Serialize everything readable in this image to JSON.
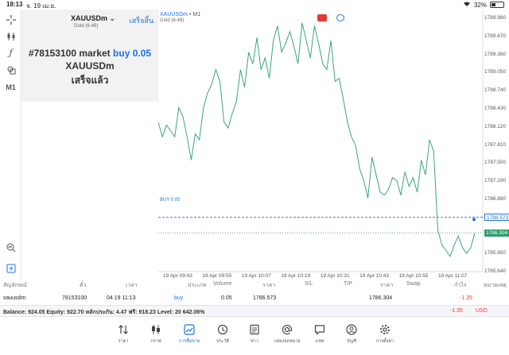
{
  "status": {
    "time": "18:13",
    "date": "จ. 19 เม.ย.",
    "battery": "32%"
  },
  "toolbar": {
    "timeframe": "M1"
  },
  "order_panel": {
    "symbol": "XAUUSDm",
    "symbol_sub": "Gold (6-49)",
    "done_label": "เสร็จสิ้น",
    "result_prefix": "#78153100 market",
    "result_side": "buy 0.05",
    "result_symbol": "XAUUSDm",
    "result_status": "เสร็จแล้ว"
  },
  "chart": {
    "symbol": "XAUUSDm",
    "timeframe": "• M1",
    "sub": "Gold (6-49)",
    "buy_line_label": "BUY 0.05",
    "buy_price_label": "1786.573",
    "current_price_label": "1786.304",
    "colors": {
      "line": "#3aa57a",
      "buy": "#1a73e8",
      "current": "#2e9e6e"
    }
  },
  "chart_data": {
    "type": "line",
    "ylim": [
      1785.64,
      1790.13
    ],
    "y_ticks": [
      "1789.980",
      "1789.670",
      "1789.360",
      "1789.050",
      "1788.740",
      "1788.430",
      "1788.120",
      "1787.810",
      "1787.500",
      "1787.190",
      "1786.880",
      "1786.573",
      "1786.304",
      "1785.950",
      "1785.640"
    ],
    "x_ticks": [
      "19 Apr 09:43",
      "19 Apr 09:55",
      "19 Apr 10:07",
      "19 Apr 10:19",
      "19 Apr 10:31",
      "19 Apr 10:43",
      "19 Apr 10:55",
      "19 Apr 11:07"
    ],
    "series": [
      {
        "values": [
          1788.2,
          1787.95,
          1788.15,
          1788.05,
          1787.95,
          1788.45,
          1788.3,
          1787.95,
          1787.55,
          1788.0,
          1787.9,
          1788.45,
          1788.7,
          1788.85,
          1789.1,
          1788.9,
          1788.2,
          1788.1,
          1788.35,
          1788.55,
          1789.1,
          1788.8,
          1789.4,
          1789.2,
          1789.65,
          1789.1,
          1789.3,
          1788.95,
          1789.6,
          1789.85,
          1789.4,
          1789.55,
          1789.75,
          1789.5,
          1789.2,
          1789.9,
          1789.6,
          1789.3,
          1789.85,
          1789.55,
          1789.2,
          1789.1,
          1789.6,
          1788.9,
          1788.95,
          1788.6,
          1788.2,
          1787.95,
          1787.8,
          1787.4,
          1787.2,
          1786.9,
          1787.6,
          1787.3,
          1787.0,
          1786.95,
          1787.05,
          1787.25,
          1787.2,
          1786.95,
          1787.35,
          1787.1,
          1787.25,
          1787.0,
          1787.55,
          1787.3,
          1787.9,
          1787.7,
          1786.35,
          1786.1,
          1786.0,
          1785.9,
          1786.1,
          1786.25,
          1786.05,
          1785.95,
          1786.05,
          1786.3
        ]
      }
    ]
  },
  "table": {
    "headers": [
      "สัญลักษณ์",
      "ตั๋ว",
      "เวลา",
      "ประเภท",
      "Volume",
      "ราคา",
      "S/L",
      "T/P",
      "ราคา",
      "Swap",
      "กำไร",
      "หมายเหตุ"
    ],
    "row": [
      "xauusdm",
      "78153100",
      "04.19 11:13",
      "buy",
      "0.05",
      "1786.573",
      "",
      "",
      "1786.304",
      "",
      "-1.35",
      ""
    ]
  },
  "balance": {
    "text": "Balance: 924.05 Equity: 922.70 หลักประกัน: 4.47 ฟรี: 918.23 Level: 20 642.06%",
    "profit": "-1.35",
    "currency": "USD"
  },
  "tabs": [
    {
      "label": "ราคา",
      "icon": "quotes-icon"
    },
    {
      "label": "กราฟ",
      "icon": "chart-icon"
    },
    {
      "label": "การซื้อขาย",
      "icon": "trade-icon"
    },
    {
      "label": "ประวัติ",
      "icon": "history-icon"
    },
    {
      "label": "ข่าว",
      "icon": "news-icon"
    },
    {
      "label": "กล่องจดหมาย",
      "icon": "mailbox-icon"
    },
    {
      "label": "แชท",
      "icon": "chat-icon"
    },
    {
      "label": "บัญชี",
      "icon": "account-icon"
    },
    {
      "label": "การตั้งค่า",
      "icon": "settings-icon"
    }
  ]
}
